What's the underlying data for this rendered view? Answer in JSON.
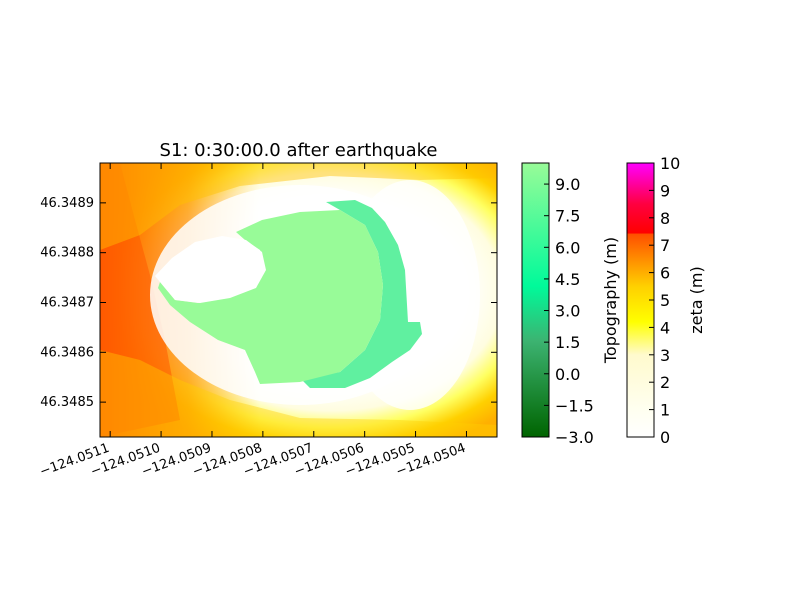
{
  "chart_data": {
    "type": "heatmap",
    "title": "S1: 0:30:00.0 after earthquake",
    "xlabel": "",
    "ylabel": "",
    "xlim": [
      -124.05112,
      -124.05034
    ],
    "ylim": [
      46.34843,
      46.34898
    ],
    "x_ticks": [
      {
        "value": -124.0511,
        "label": "−124.0511"
      },
      {
        "value": -124.051,
        "label": "−124.0510"
      },
      {
        "value": -124.0509,
        "label": "−124.0509"
      },
      {
        "value": -124.0508,
        "label": "−124.0508"
      },
      {
        "value": -124.0507,
        "label": "−124.0507"
      },
      {
        "value": -124.0506,
        "label": "−124.0506"
      },
      {
        "value": -124.0505,
        "label": "−124.0505"
      },
      {
        "value": -124.0504,
        "label": "−124.0504"
      }
    ],
    "y_ticks": [
      {
        "value": 46.3485,
        "label": "46.3485"
      },
      {
        "value": 46.3486,
        "label": "46.3486"
      },
      {
        "value": 46.3487,
        "label": "46.3487"
      },
      {
        "value": 46.3488,
        "label": "46.3488"
      },
      {
        "value": 46.3489,
        "label": "46.3489"
      }
    ],
    "colorbars": [
      {
        "name": "topography",
        "label": "Topography (m)",
        "range": [
          -3.0,
          10.0
        ],
        "ticks": [
          {
            "value": 9.0,
            "label": "9.0"
          },
          {
            "value": 7.5,
            "label": "7.5"
          },
          {
            "value": 6.0,
            "label": "6.0"
          },
          {
            "value": 4.5,
            "label": "4.5"
          },
          {
            "value": 3.0,
            "label": "3.0"
          },
          {
            "value": 1.5,
            "label": "1.5"
          },
          {
            "value": 0.0,
            "label": "0.0"
          },
          {
            "value": -1.5,
            "label": "−1.5"
          },
          {
            "value": -3.0,
            "label": "−3.0"
          }
        ],
        "colors": [
          "#006400",
          "#3cb371",
          "#00fa9a",
          "#98fb98"
        ]
      },
      {
        "name": "zeta",
        "label": "zeta (m)",
        "range": [
          0,
          10
        ],
        "ticks": [
          {
            "value": 0,
            "label": "0"
          },
          {
            "value": 1,
            "label": "1"
          },
          {
            "value": 2,
            "label": "2"
          },
          {
            "value": 3,
            "label": "3"
          },
          {
            "value": 4,
            "label": "4"
          },
          {
            "value": 5,
            "label": "5"
          },
          {
            "value": 6,
            "label": "6"
          },
          {
            "value": 7,
            "label": "7"
          },
          {
            "value": 8,
            "label": "8"
          },
          {
            "value": 9,
            "label": "9"
          },
          {
            "value": 10,
            "label": "10"
          }
        ],
        "colors": [
          "#ffffff",
          "#ffff00",
          "#ff4000",
          "#ff0000",
          "#ff00ff"
        ]
      }
    ],
    "regions": [
      {
        "name": "topography",
        "description": "green land surface, approx 7.5 to 10 m"
      },
      {
        "name": "zeta",
        "description": "water surface, approx 0 to 6.5 m"
      }
    ]
  }
}
